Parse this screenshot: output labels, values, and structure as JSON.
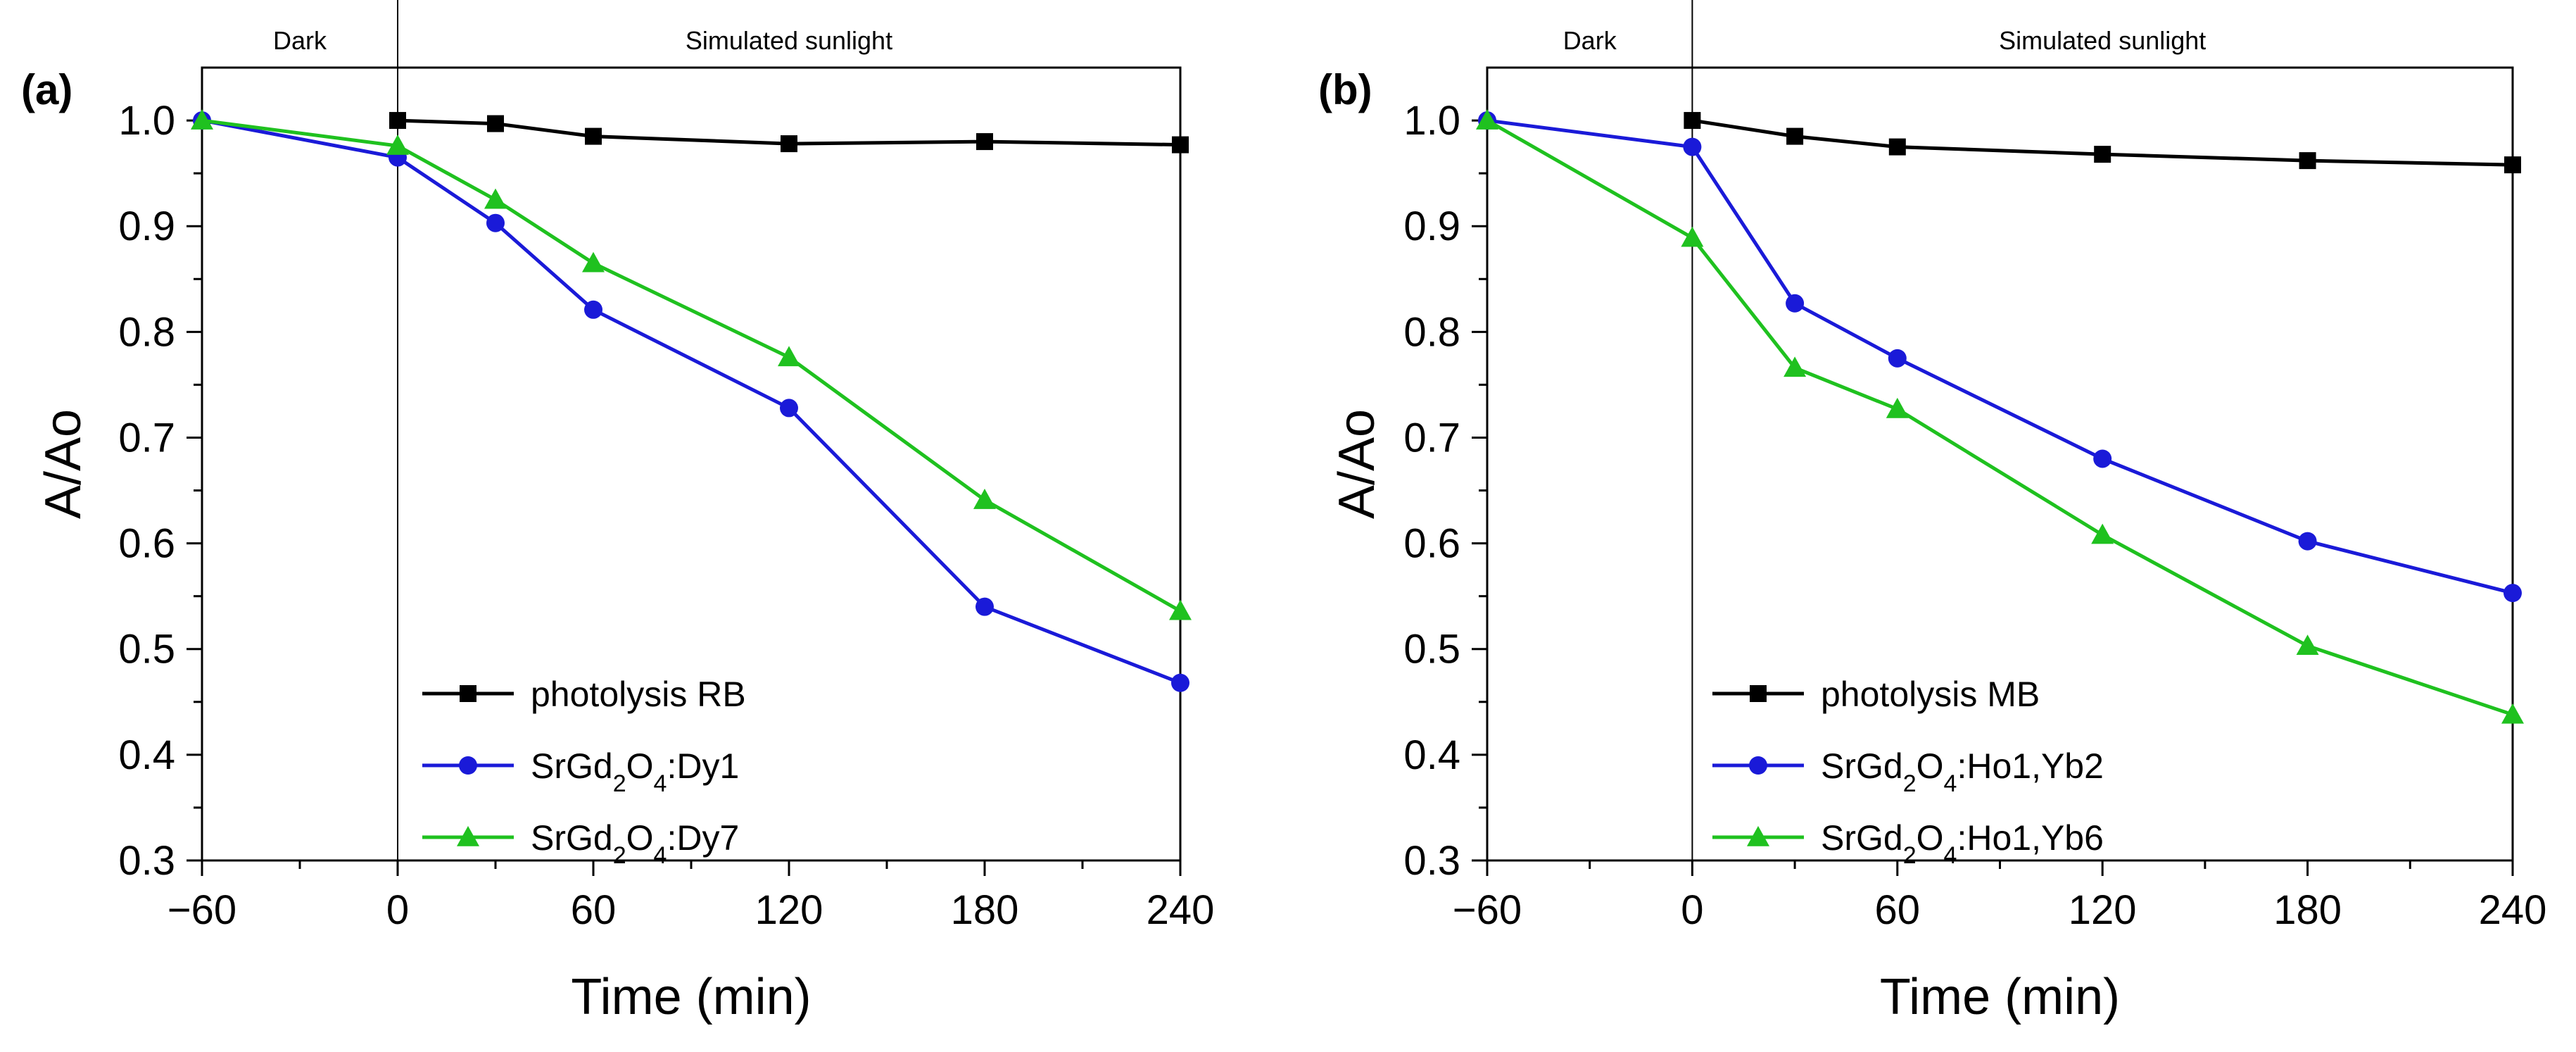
{
  "chart_data": [
    {
      "type": "line",
      "panel_label": "(a)",
      "xlabel": "Time (min)",
      "ylabel": "A/Ao",
      "xlim": [
        -60,
        240
      ],
      "ylim": [
        0.3,
        1.05
      ],
      "x_ticks": [
        -60,
        0,
        60,
        120,
        180,
        240
      ],
      "x_tick_labels": [
        "−60",
        "0",
        "60",
        "120",
        "180",
        "240"
      ],
      "y_ticks": [
        0.3,
        0.4,
        0.5,
        0.6,
        0.7,
        0.8,
        0.9,
        1.0
      ],
      "y_tick_labels": [
        "0.3",
        "0.4",
        "0.5",
        "0.6",
        "0.7",
        "0.8",
        "0.9",
        "1.0"
      ],
      "regions": [
        {
          "label": "Dark",
          "x_center": -30
        },
        {
          "label": "Simulated sunlight",
          "x_center": 120
        }
      ],
      "divider_x": 0,
      "legend_position": "bottom-left",
      "series": [
        {
          "name": "photolysis RB",
          "name_parts": [
            {
              "t": "photolysis RB"
            }
          ],
          "color": "#000000",
          "marker": "square",
          "x": [
            0,
            30,
            60,
            120,
            180,
            240
          ],
          "y": [
            1.0,
            0.997,
            0.985,
            0.978,
            0.98,
            0.977
          ]
        },
        {
          "name": "SrGd2O4:Dy1",
          "name_parts": [
            {
              "t": "SrGd"
            },
            {
              "t": "2",
              "sub": true
            },
            {
              "t": "O"
            },
            {
              "t": "4",
              "sub": true
            },
            {
              "t": ":Dy1"
            }
          ],
          "color": "#1a1ad8",
          "marker": "circle",
          "x": [
            -60,
            0,
            30,
            60,
            120,
            180,
            240
          ],
          "y": [
            1.0,
            0.965,
            0.903,
            0.821,
            0.728,
            0.54,
            0.468
          ]
        },
        {
          "name": "SrGd2O4:Dy7",
          "name_parts": [
            {
              "t": "SrGd"
            },
            {
              "t": "2",
              "sub": true
            },
            {
              "t": "O"
            },
            {
              "t": "4",
              "sub": true
            },
            {
              "t": ":Dy7"
            }
          ],
          "color": "#1fc11f",
          "marker": "triangle",
          "x": [
            -60,
            0,
            30,
            60,
            120,
            180,
            240
          ],
          "y": [
            1.0,
            0.976,
            0.925,
            0.865,
            0.776,
            0.641,
            0.536
          ]
        }
      ]
    },
    {
      "type": "line",
      "panel_label": "(b)",
      "xlabel": "Time (min)",
      "ylabel": "A/Ao",
      "xlim": [
        -60,
        240
      ],
      "ylim": [
        0.3,
        1.05
      ],
      "x_ticks": [
        -60,
        0,
        60,
        120,
        180,
        240
      ],
      "x_tick_labels": [
        "−60",
        "0",
        "60",
        "120",
        "180",
        "240"
      ],
      "y_ticks": [
        0.3,
        0.4,
        0.5,
        0.6,
        0.7,
        0.8,
        0.9,
        1.0
      ],
      "y_tick_labels": [
        "0.3",
        "0.4",
        "0.5",
        "0.6",
        "0.7",
        "0.8",
        "0.9",
        "1.0"
      ],
      "regions": [
        {
          "label": "Dark",
          "x_center": -30
        },
        {
          "label": "Simulated sunlight",
          "x_center": 120
        }
      ],
      "divider_x": 0,
      "legend_position": "bottom-left",
      "series": [
        {
          "name": "photolysis MB",
          "name_parts": [
            {
              "t": "photolysis MB"
            }
          ],
          "color": "#000000",
          "marker": "square",
          "x": [
            0,
            30,
            60,
            120,
            180,
            240
          ],
          "y": [
            1.0,
            0.985,
            0.975,
            0.968,
            0.962,
            0.958
          ]
        },
        {
          "name": "SrGd2O4:Ho1,Yb2",
          "name_parts": [
            {
              "t": "SrGd"
            },
            {
              "t": "2",
              "sub": true
            },
            {
              "t": "O"
            },
            {
              "t": "4",
              "sub": true
            },
            {
              "t": ":Ho1,Yb2"
            }
          ],
          "color": "#1a1ad8",
          "marker": "circle",
          "x": [
            -60,
            0,
            30,
            60,
            120,
            180,
            240
          ],
          "y": [
            1.0,
            0.975,
            0.827,
            0.775,
            0.68,
            0.602,
            0.553
          ]
        },
        {
          "name": "SrGd2O4:Ho1,Yb6",
          "name_parts": [
            {
              "t": "SrGd"
            },
            {
              "t": "2",
              "sub": true
            },
            {
              "t": "O"
            },
            {
              "t": "4",
              "sub": true
            },
            {
              "t": ":Ho1,Yb6"
            }
          ],
          "color": "#1fc11f",
          "marker": "triangle",
          "x": [
            -60,
            0,
            30,
            60,
            120,
            180,
            240
          ],
          "y": [
            1.0,
            0.889,
            0.766,
            0.727,
            0.608,
            0.503,
            0.438
          ]
        }
      ]
    }
  ]
}
